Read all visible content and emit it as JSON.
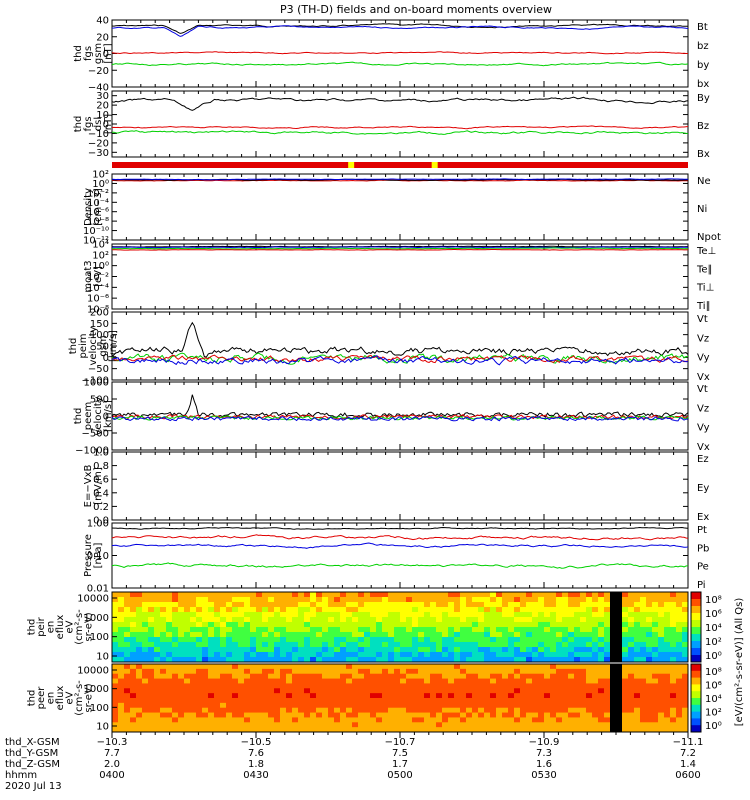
{
  "title": "P3 (TH-D) fields and on-board moments overview",
  "colors": {
    "black": "#000000",
    "red": "#e00000",
    "green": "#00d000",
    "blue": "#0000e0",
    "yellow": "#ffff00"
  },
  "chart_data": [
    {
      "type": "line",
      "ylabel": [
        "thd",
        "fgs",
        "gsm",
        "[nT]"
      ],
      "ylim": [
        -40,
        40
      ],
      "yticks": [
        "40",
        "20",
        "0",
        "−20",
        "−40"
      ],
      "series": [
        {
          "name": "Bt",
          "color": "black"
        },
        {
          "name": "bz",
          "color": "red"
        },
        {
          "name": "by",
          "color": "green"
        },
        {
          "name": "bx",
          "color": "blue"
        }
      ]
    },
    {
      "type": "line",
      "ylabel": [
        "thd",
        "fgs",
        "dsl",
        "[nT]"
      ],
      "ylim": [
        -35,
        35
      ],
      "yticks": [
        "30",
        "20",
        "10",
        "0",
        "−10",
        "−20",
        "−30"
      ],
      "series": [
        {
          "name": "By",
          "color": "green"
        },
        {
          "name": "Bz",
          "color": "red"
        },
        {
          "name": "Bx",
          "color": "black"
        }
      ]
    },
    {
      "type": "line",
      "ylabel": [
        "Density",
        "[cm−3]"
      ],
      "ylim": [
        "10^-12",
        "10^2"
      ],
      "yticks": [
        "10²",
        "10⁰",
        "10⁻²",
        "10⁻⁴",
        "10⁻⁶",
        "10⁻⁸",
        "10⁻¹⁰",
        "10⁻¹²"
      ],
      "series": [
        {
          "name": "Ne",
          "color": "red"
        },
        {
          "name": "Ni",
          "color": "black"
        },
        {
          "name": "Npot",
          "color": "blue"
        }
      ]
    },
    {
      "type": "line",
      "ylabel": [
        "moat3",
        "[eV]"
      ],
      "ylim": [
        "10^-8",
        "10^4"
      ],
      "yticks": [
        "10⁴",
        "10²",
        "10⁰",
        "10⁻²",
        "10⁻⁴",
        "10⁻⁶",
        "10⁻⁸"
      ],
      "series": [
        {
          "name": "Te⊥",
          "color": "red"
        },
        {
          "name": "Te∥",
          "color": "black"
        },
        {
          "name": "Ti⊥",
          "color": "blue"
        },
        {
          "name": "Ti∥",
          "color": "green"
        }
      ]
    },
    {
      "type": "line",
      "ylabel": [
        "thd",
        "peim",
        "velocity",
        "gsm",
        "[km/s]"
      ],
      "ylim": [
        -100,
        200
      ],
      "yticks": [
        "200",
        "150",
        "100",
        "50",
        "0",
        "−50",
        "−100"
      ],
      "series": [
        {
          "name": "Vt",
          "color": "black"
        },
        {
          "name": "Vz",
          "color": "red"
        },
        {
          "name": "Vy",
          "color": "green"
        },
        {
          "name": "Vx",
          "color": "blue"
        }
      ]
    },
    {
      "type": "line",
      "ylabel": [
        "thd",
        "peem",
        "velocity",
        "[km/s]"
      ],
      "ylim": [
        -1000,
        1000
      ],
      "yticks": [
        "1000",
        "500",
        "0",
        "−500",
        "−1000"
      ],
      "series": [
        {
          "name": "Vt",
          "color": "black"
        },
        {
          "name": "Vz",
          "color": "red"
        },
        {
          "name": "Vy",
          "color": "green"
        },
        {
          "name": "Vx",
          "color": "blue"
        }
      ]
    },
    {
      "type": "line",
      "ylabel": [
        "E=−VxB",
        "[mV/m]"
      ],
      "ylim": [
        0.0,
        1.0
      ],
      "yticks": [
        "1.0",
        "0.8",
        "0.6",
        "0.4",
        "0.2",
        "0.0"
      ],
      "series": [
        {
          "name": "Ez",
          "color": "red"
        },
        {
          "name": "Ey",
          "color": "green"
        },
        {
          "name": "Ex",
          "color": "blue"
        }
      ]
    },
    {
      "type": "line",
      "ylabel": [
        "Pressure",
        "[nPa]"
      ],
      "ylim": [
        0.01,
        1.0
      ],
      "yticks": [
        "1.00",
        "0.10",
        "0.01"
      ],
      "series": [
        {
          "name": "Pt",
          "color": "black"
        },
        {
          "name": "Pb",
          "color": "red"
        },
        {
          "name": "Pe",
          "color": "green"
        },
        {
          "name": "Pi",
          "color": "blue"
        }
      ]
    },
    {
      "type": "heatmap",
      "ylabel": [
        "thd",
        "peir",
        "en",
        "eflux",
        "eV",
        "(cm²-s-",
        "sr-eV)"
      ],
      "yticks": [
        "10000",
        "1000",
        "100",
        "10"
      ]
    },
    {
      "type": "heatmap",
      "ylabel": [
        "thd",
        "peer",
        "en",
        "eflux",
        "eV",
        "(cm²-s-",
        "sr-eV)"
      ],
      "yticks": [
        "10000",
        "1000",
        "100",
        "10"
      ]
    }
  ],
  "colorbar": {
    "label": "[eV/(cm²-s-sr-eV)] (All Qs)",
    "ticks_top": [
      "10⁸",
      "10⁶",
      "10⁴",
      "10²",
      "10⁰"
    ],
    "ticks_bottom": [
      "10⁸",
      "10⁶",
      "10⁴",
      "10²",
      "10⁰"
    ]
  },
  "x_axis": {
    "row_labels": [
      "thd_X-GSM",
      "thd_Y-GSM",
      "thd_Z-GSM",
      "hhmm"
    ],
    "date": "2020 Jul 13",
    "ticks": [
      {
        "x_gsm": "−10.3",
        "y_gsm": "7.7",
        "z_gsm": "2.0",
        "hhmm": "0400"
      },
      {
        "x_gsm": "−10.5",
        "y_gsm": "7.6",
        "z_gsm": "1.8",
        "hhmm": "0430"
      },
      {
        "x_gsm": "−10.7",
        "y_gsm": "7.5",
        "z_gsm": "1.7",
        "hhmm": "0500"
      },
      {
        "x_gsm": "−10.9",
        "y_gsm": "7.3",
        "z_gsm": "1.6",
        "hhmm": "0530"
      },
      {
        "x_gsm": "−11.1",
        "y_gsm": "7.2",
        "z_gsm": "1.4",
        "hhmm": "0600"
      }
    ]
  }
}
